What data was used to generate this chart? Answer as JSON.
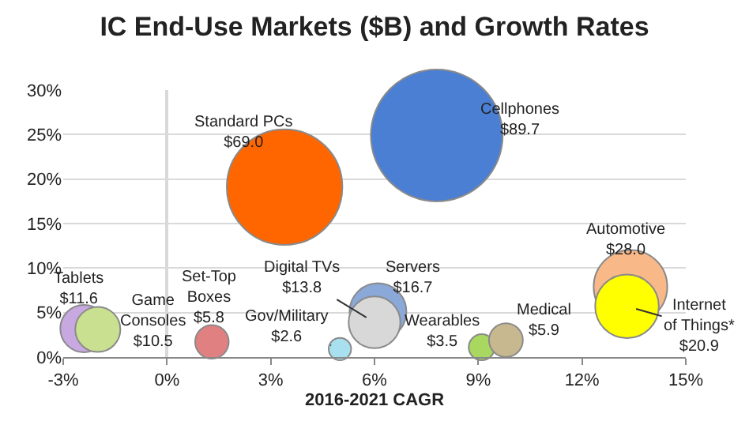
{
  "chart_data": {
    "type": "bubble",
    "title": "IC End-Use Markets ($B) and Growth Rates",
    "xlabel": "2016-2021 CAGR",
    "xlim": [
      -3,
      15
    ],
    "xticks": [
      {
        "value": -3,
        "label": "-3%"
      },
      {
        "value": 0,
        "label": "0%"
      },
      {
        "value": 3,
        "label": "3%"
      },
      {
        "value": 6,
        "label": "6%"
      },
      {
        "value": 9,
        "label": "9%"
      },
      {
        "value": 12,
        "label": "12%"
      },
      {
        "value": 15,
        "label": "15%"
      }
    ],
    "ylim": [
      0,
      30
    ],
    "yticks": [
      {
        "value": 0,
        "label": "0%"
      },
      {
        "value": 5,
        "label": "5%"
      },
      {
        "value": 10,
        "label": "10%"
      },
      {
        "value": 15,
        "label": "15%"
      },
      {
        "value": 20,
        "label": "20%"
      },
      {
        "value": 25,
        "label": "25%"
      },
      {
        "value": 30,
        "label": "30%"
      }
    ],
    "grid": "y",
    "legend": false,
    "series": [
      {
        "color": "#4a7fd4",
        "x": [
          7.8
        ],
        "values": [
          24.9
        ],
        "sizes": [
          1
        ]
      },
      {
        "color": "#ff6600",
        "x": [
          3.4
        ],
        "values": [
          19.1
        ],
        "sizes": [
          0.769
        ]
      },
      {
        "color": "#c8a8e0",
        "x": [
          -2.4
        ],
        "values": [
          3.2
        ],
        "sizes": [
          0.129
        ]
      },
      {
        "color": "#c8e090",
        "x": [
          -2.0
        ],
        "values": [
          3.1
        ],
        "sizes": [
          0.117
        ]
      },
      {
        "color": "#e08080",
        "x": [
          1.3
        ],
        "values": [
          1.7
        ],
        "sizes": [
          0.065
        ]
      },
      {
        "color": "#a8e0f0",
        "x": [
          5.0
        ],
        "values": [
          0.9
        ],
        "sizes": [
          0.029
        ]
      },
      {
        "color": "#8aa8d8",
        "x": [
          6.1
        ],
        "values": [
          5.1
        ],
        "sizes": [
          0.186
        ]
      },
      {
        "color": "#d8d8d8",
        "x": [
          6.0
        ],
        "values": [
          3.9
        ],
        "sizes": [
          0.154
        ]
      },
      {
        "color": "#a8d860",
        "x": [
          9.1
        ],
        "values": [
          1.1
        ],
        "sizes": [
          0.039
        ]
      },
      {
        "color": "#c8b890",
        "x": [
          9.8
        ],
        "values": [
          1.9
        ],
        "sizes": [
          0.066
        ]
      },
      {
        "color": "#f8b888",
        "x": [
          13.4
        ],
        "values": [
          7.9
        ],
        "sizes": [
          0.312
        ]
      },
      {
        "color": "#ffff00",
        "x": [
          13.3
        ],
        "values": [
          5.7
        ],
        "sizes": [
          0.233
        ]
      }
    ],
    "annotations": [
      {
        "text": "Cellphones\n$89.7",
        "x": 7.8,
        "y": 24.9
      },
      {
        "text": "Standard PCs\n$69.0",
        "x": 3.4,
        "y": 19.1
      },
      {
        "text": "Tablets\n$11.6",
        "x": -2.4,
        "y": 3.2
      },
      {
        "text": "Game\nConsoles\n$10.5",
        "x": -2.0,
        "y": 3.1
      },
      {
        "text": "Set-Top\nBoxes\n$5.8",
        "x": 1.3,
        "y": 1.7
      },
      {
        "text": "Gov/Military\n$2.6",
        "x": 5.0,
        "y": 0.9
      },
      {
        "text": "Servers\n$16.7",
        "x": 6.1,
        "y": 5.1
      },
      {
        "text": "Digital TVs\n$13.8",
        "x": 6.0,
        "y": 3.9
      },
      {
        "text": "Wearables\n$3.5",
        "x": 9.1,
        "y": 1.1
      },
      {
        "text": "Medical\n$5.9",
        "x": 9.8,
        "y": 1.9
      },
      {
        "text": "Automotive\n$28.0",
        "x": 13.4,
        "y": 7.9
      },
      {
        "text": "Internet\nof Things*\n$20.9",
        "x": 13.3,
        "y": 5.7
      }
    ]
  }
}
